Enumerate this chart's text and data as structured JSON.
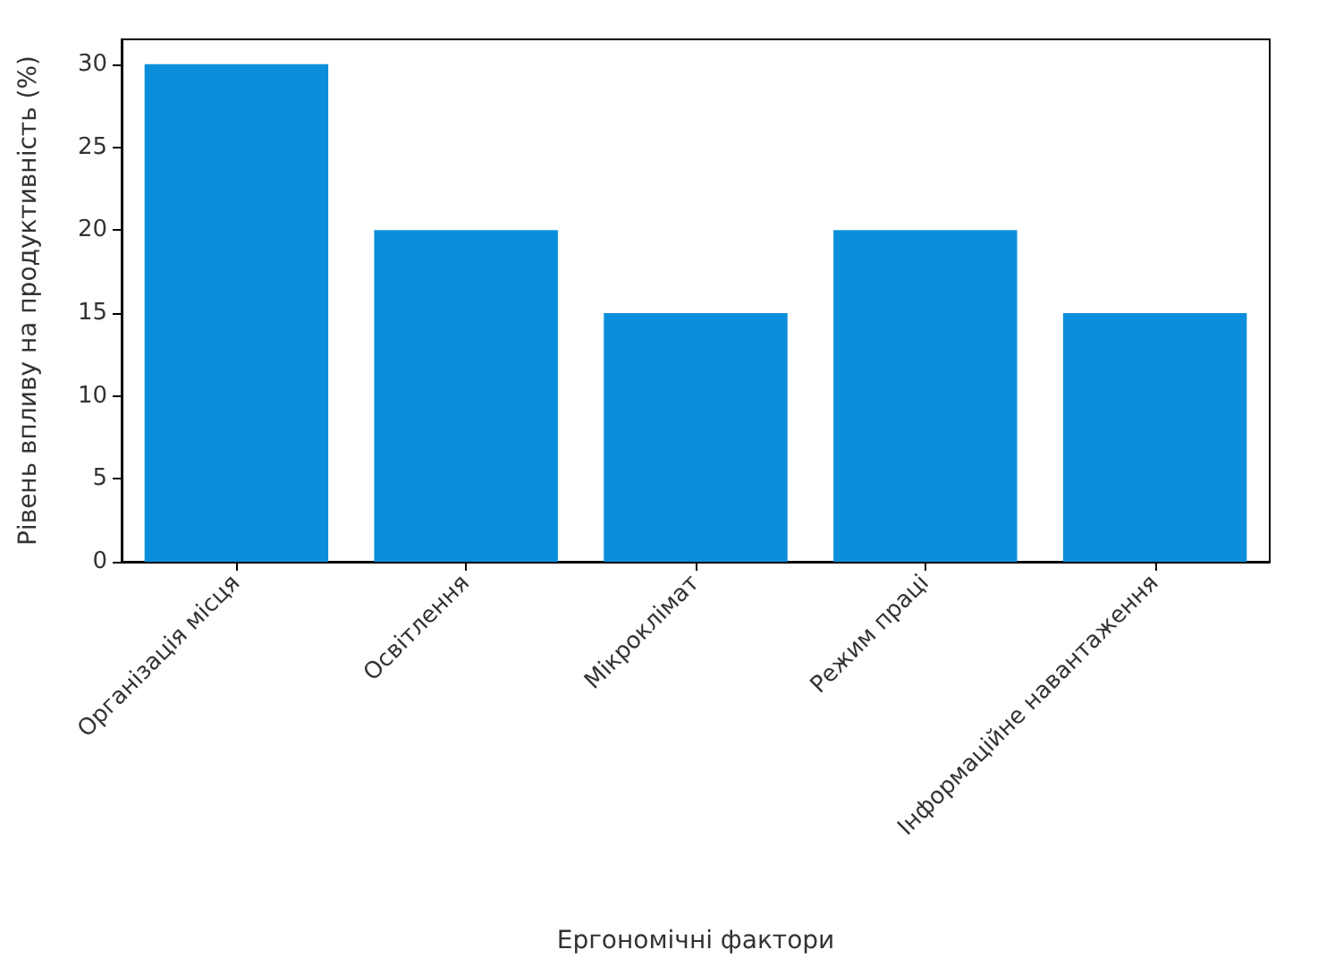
{
  "chart_data": {
    "type": "bar",
    "xlabel": "Ергономічні фактори",
    "ylabel": "Рівень впливу на продуктивність (%)",
    "categories": [
      "Організація місця",
      "Освітлення",
      "Мікроклімат",
      "Режим праці",
      "Інформаційне навантаження"
    ],
    "values": [
      30,
      20,
      15,
      20,
      15
    ],
    "color": "#0b8fdc",
    "ylim": [
      0,
      31.5
    ],
    "yticks": [
      0,
      5,
      10,
      15,
      20,
      25,
      30
    ],
    "grid": false
  }
}
